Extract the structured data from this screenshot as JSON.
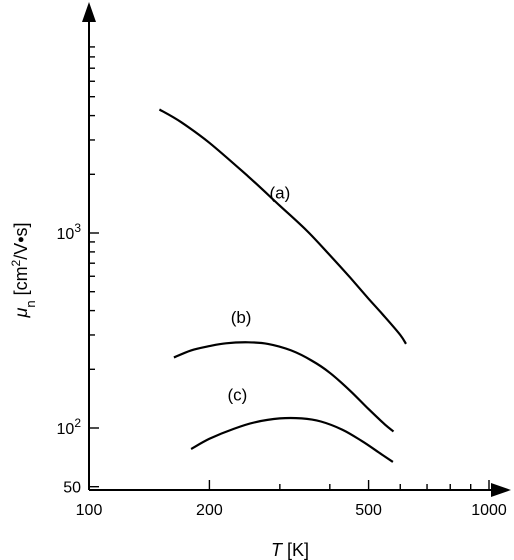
{
  "chart_data": {
    "type": "line",
    "x_scale": "log",
    "y_scale": "log",
    "xlim": [
      100,
      1100
    ],
    "ylim": [
      50,
      20000
    ],
    "grid": false,
    "legend": "none",
    "x_ticks": [
      {
        "value": 100,
        "label": "100"
      },
      {
        "value": 200,
        "label": "200"
      },
      {
        "value": 500,
        "label": "500"
      },
      {
        "value": 1000,
        "label": "1000"
      }
    ],
    "x_minor_ticks": [
      300,
      400,
      600,
      700,
      800,
      900
    ],
    "y_ticks": [
      {
        "value": 50,
        "label": "50",
        "sup": ""
      },
      {
        "value": 100,
        "label": "10",
        "sup": "2"
      },
      {
        "value": 1000,
        "label": "10",
        "sup": "3"
      }
    ],
    "y_minor_ticks": [
      200,
      300,
      400,
      500,
      600,
      700,
      800,
      900,
      2000,
      3000,
      4000,
      5000,
      6000,
      7000,
      8000,
      9000
    ],
    "xlabel": {
      "var": "T",
      "unit": " [K]"
    },
    "ylabel": {
      "var": "μ",
      "sub": "n",
      "unit_pre": " [cm",
      "unit_sup": "2",
      "unit_post": "/V•s]"
    },
    "series": [
      {
        "name": "(a)",
        "label_at": [
          300,
          1500
        ],
        "points": [
          [
            150,
            4300
          ],
          [
            170,
            3700
          ],
          [
            200,
            2900
          ],
          [
            250,
            1950
          ],
          [
            300,
            1380
          ],
          [
            350,
            1030
          ],
          [
            400,
            770
          ],
          [
            450,
            590
          ],
          [
            500,
            460
          ],
          [
            550,
            370
          ],
          [
            600,
            300
          ],
          [
            620,
            270
          ]
        ]
      },
      {
        "name": "(b)",
        "label_at": [
          240,
          345
        ],
        "points": [
          [
            163,
            230
          ],
          [
            180,
            250
          ],
          [
            200,
            263
          ],
          [
            220,
            272
          ],
          [
            250,
            275
          ],
          [
            280,
            270
          ],
          [
            320,
            250
          ],
          [
            360,
            222
          ],
          [
            400,
            192
          ],
          [
            450,
            155
          ],
          [
            500,
            125
          ],
          [
            550,
            104
          ],
          [
            577,
            96
          ]
        ]
      },
      {
        "name": "(c)",
        "label_at": [
          235,
          138
        ],
        "points": [
          [
            180,
            78
          ],
          [
            200,
            88
          ],
          [
            230,
            99
          ],
          [
            260,
            107
          ],
          [
            300,
            112
          ],
          [
            340,
            112
          ],
          [
            380,
            108
          ],
          [
            430,
            98
          ],
          [
            480,
            86
          ],
          [
            530,
            75
          ],
          [
            575,
            67
          ]
        ]
      }
    ]
  }
}
